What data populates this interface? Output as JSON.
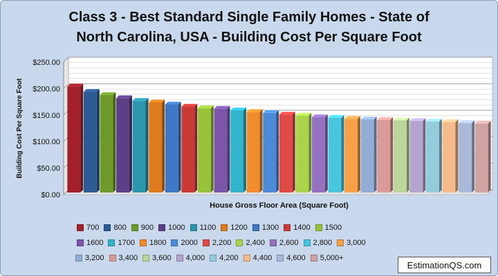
{
  "chart_data": {
    "type": "bar",
    "title": "Class 3 - Best Standard Single Family Homes  - State of\nNorth Carolina, USA  - Building Cost Per Square Foot",
    "xlabel": "House Gross Floor Area (Square Foot)",
    "ylabel": "Building Cost Per Square Foot",
    "ylim": [
      0,
      250
    ],
    "yticks": [
      "$0.00",
      "$50.00",
      "$100.00",
      "$150.00",
      "$200.00",
      "$250.00"
    ],
    "ytick_values": [
      0,
      50,
      100,
      150,
      200,
      250
    ],
    "grid": true,
    "legend_position": "bottom",
    "categories": [
      "700",
      "800",
      "900",
      "1000",
      "1100",
      "1200",
      "1300",
      "1400",
      "1500",
      "1600",
      "1700",
      "1800",
      "2000",
      "2,200",
      "2,400",
      "2,600",
      "2,800",
      "3,000",
      "3,200",
      "3,400",
      "3,600",
      "4,000",
      "4,200",
      "4,400",
      "4,600",
      "5,000+"
    ],
    "values": [
      200,
      190,
      184,
      178,
      173,
      170,
      166,
      162,
      159,
      158,
      155,
      152,
      150,
      147,
      145,
      142,
      141,
      139,
      138,
      137,
      136,
      135,
      134,
      133,
      131,
      130
    ],
    "colors": [
      "#a3202b",
      "#2d5b94",
      "#6d9a2a",
      "#5c3f86",
      "#2b96ad",
      "#de7b1e",
      "#3f78c4",
      "#c93a37",
      "#97c23a",
      "#7b55a8",
      "#32b4cc",
      "#f08c2e",
      "#4d8bd8",
      "#e04a46",
      "#a9d44c",
      "#9472c0",
      "#47c6de",
      "#f7a048",
      "#93aed6",
      "#d99a99",
      "#bcd59a",
      "#b4a5cf",
      "#94ccdb",
      "#f5bb8d",
      "#a9b9da",
      "#cfa3a2"
    ]
  },
  "watermark": "EstimationQS.com"
}
